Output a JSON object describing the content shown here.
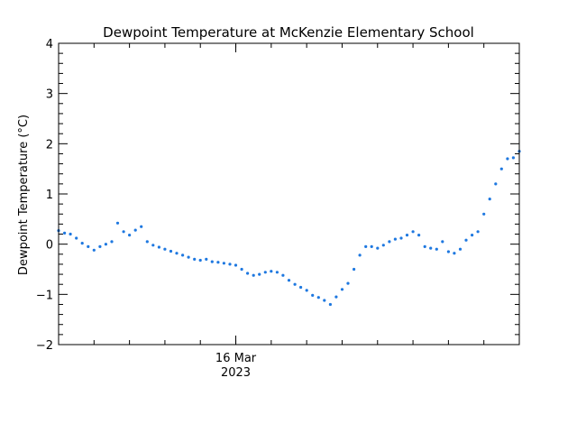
{
  "chart_data": {
    "type": "scatter",
    "title": "Dewpoint Temperature at McKenzie Elementary School",
    "ylabel": "Dewpoint Temperature (°C)",
    "xlabel": "",
    "ylim": [
      -2,
      4
    ],
    "yticks": [
      -2,
      -1,
      0,
      1,
      2,
      3,
      4
    ],
    "yticklabels": [
      "−2",
      "−1",
      "0",
      "1",
      "2",
      "3",
      "4"
    ],
    "xlim": [
      "2023-03-15T14:00",
      "2023-03-16T16:00"
    ],
    "xticks": [
      {
        "x": "2023-03-16T00:00",
        "label_line1": "16 Mar",
        "label_line2": "2023"
      }
    ],
    "grid": false,
    "legend": "none",
    "series": [
      {
        "color": "#1e78e0",
        "marker": "dot",
        "points": [
          [
            "2023-03-15T14:00",
            0.27
          ],
          [
            "2023-03-15T14:20",
            0.22
          ],
          [
            "2023-03-15T14:40",
            0.2
          ],
          [
            "2023-03-15T15:00",
            0.12
          ],
          [
            "2023-03-15T15:20",
            0.02
          ],
          [
            "2023-03-15T15:40",
            -0.05
          ],
          [
            "2023-03-15T16:00",
            -0.12
          ],
          [
            "2023-03-15T16:20",
            -0.05
          ],
          [
            "2023-03-15T16:40",
            0.0
          ],
          [
            "2023-03-15T17:00",
            0.05
          ],
          [
            "2023-03-15T17:20",
            0.42
          ],
          [
            "2023-03-15T17:40",
            0.25
          ],
          [
            "2023-03-15T18:00",
            0.18
          ],
          [
            "2023-03-15T18:20",
            0.28
          ],
          [
            "2023-03-15T18:40",
            0.35
          ],
          [
            "2023-03-15T19:00",
            0.05
          ],
          [
            "2023-03-15T19:20",
            -0.02
          ],
          [
            "2023-03-15T19:40",
            -0.06
          ],
          [
            "2023-03-15T20:00",
            -0.1
          ],
          [
            "2023-03-15T20:20",
            -0.14
          ],
          [
            "2023-03-15T20:40",
            -0.18
          ],
          [
            "2023-03-15T21:00",
            -0.22
          ],
          [
            "2023-03-15T21:20",
            -0.26
          ],
          [
            "2023-03-15T21:40",
            -0.3
          ],
          [
            "2023-03-15T22:00",
            -0.32
          ],
          [
            "2023-03-15T22:20",
            -0.3
          ],
          [
            "2023-03-15T22:40",
            -0.35
          ],
          [
            "2023-03-15T23:00",
            -0.36
          ],
          [
            "2023-03-15T23:20",
            -0.38
          ],
          [
            "2023-03-15T23:40",
            -0.4
          ],
          [
            "2023-03-16T00:00",
            -0.42
          ],
          [
            "2023-03-16T00:20",
            -0.5
          ],
          [
            "2023-03-16T00:40",
            -0.58
          ],
          [
            "2023-03-16T01:00",
            -0.62
          ],
          [
            "2023-03-16T01:20",
            -0.6
          ],
          [
            "2023-03-16T01:40",
            -0.56
          ],
          [
            "2023-03-16T02:00",
            -0.54
          ],
          [
            "2023-03-16T02:20",
            -0.56
          ],
          [
            "2023-03-16T02:40",
            -0.62
          ],
          [
            "2023-03-16T03:00",
            -0.72
          ],
          [
            "2023-03-16T03:20",
            -0.8
          ],
          [
            "2023-03-16T03:40",
            -0.86
          ],
          [
            "2023-03-16T04:00",
            -0.92
          ],
          [
            "2023-03-16T04:20",
            -1.02
          ],
          [
            "2023-03-16T04:40",
            -1.06
          ],
          [
            "2023-03-16T05:00",
            -1.12
          ],
          [
            "2023-03-16T05:20",
            -1.2
          ],
          [
            "2023-03-16T05:40",
            -1.05
          ],
          [
            "2023-03-16T06:00",
            -0.9
          ],
          [
            "2023-03-16T06:20",
            -0.78
          ],
          [
            "2023-03-16T06:40",
            -0.5
          ],
          [
            "2023-03-16T07:00",
            -0.22
          ],
          [
            "2023-03-16T07:20",
            -0.05
          ],
          [
            "2023-03-16T07:40",
            -0.05
          ],
          [
            "2023-03-16T08:00",
            -0.08
          ],
          [
            "2023-03-16T08:20",
            -0.02
          ],
          [
            "2023-03-16T08:40",
            0.05
          ],
          [
            "2023-03-16T09:00",
            0.1
          ],
          [
            "2023-03-16T09:20",
            0.12
          ],
          [
            "2023-03-16T09:40",
            0.18
          ],
          [
            "2023-03-16T10:00",
            0.25
          ],
          [
            "2023-03-16T10:20",
            0.18
          ],
          [
            "2023-03-16T10:40",
            -0.05
          ],
          [
            "2023-03-16T11:00",
            -0.08
          ],
          [
            "2023-03-16T11:20",
            -0.1
          ],
          [
            "2023-03-16T11:40",
            0.05
          ],
          [
            "2023-03-16T12:00",
            -0.15
          ],
          [
            "2023-03-16T12:20",
            -0.18
          ],
          [
            "2023-03-16T12:40",
            -0.1
          ],
          [
            "2023-03-16T13:00",
            0.08
          ],
          [
            "2023-03-16T13:20",
            0.18
          ],
          [
            "2023-03-16T13:40",
            0.25
          ],
          [
            "2023-03-16T14:00",
            0.6
          ],
          [
            "2023-03-16T14:20",
            0.9
          ],
          [
            "2023-03-16T14:40",
            1.2
          ],
          [
            "2023-03-16T15:00",
            1.5
          ],
          [
            "2023-03-16T15:20",
            1.7
          ],
          [
            "2023-03-16T15:40",
            1.72
          ],
          [
            "2023-03-16T16:00",
            1.85
          ]
        ]
      }
    ]
  }
}
